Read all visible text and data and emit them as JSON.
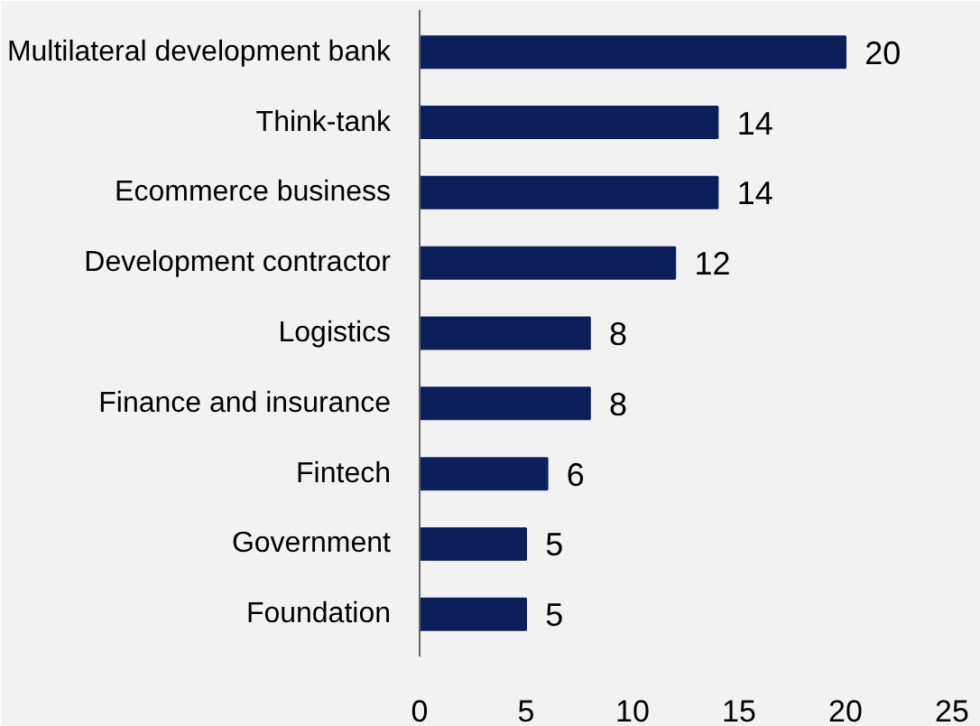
{
  "chart_data": {
    "type": "bar",
    "orientation": "horizontal",
    "categories": [
      "Multilateral development bank",
      "Think-tank",
      "Ecommerce business",
      "Development contractor",
      "Logistics",
      "Finance and insurance",
      "Fintech",
      "Government",
      "Foundation"
    ],
    "values": [
      20,
      14,
      14,
      12,
      8,
      8,
      6,
      5,
      5
    ],
    "color": "#0c1f5b",
    "xlim": [
      0,
      25
    ],
    "xticks": [
      0,
      5,
      10,
      15,
      20,
      25
    ],
    "data_labels": true,
    "grid": false
  }
}
